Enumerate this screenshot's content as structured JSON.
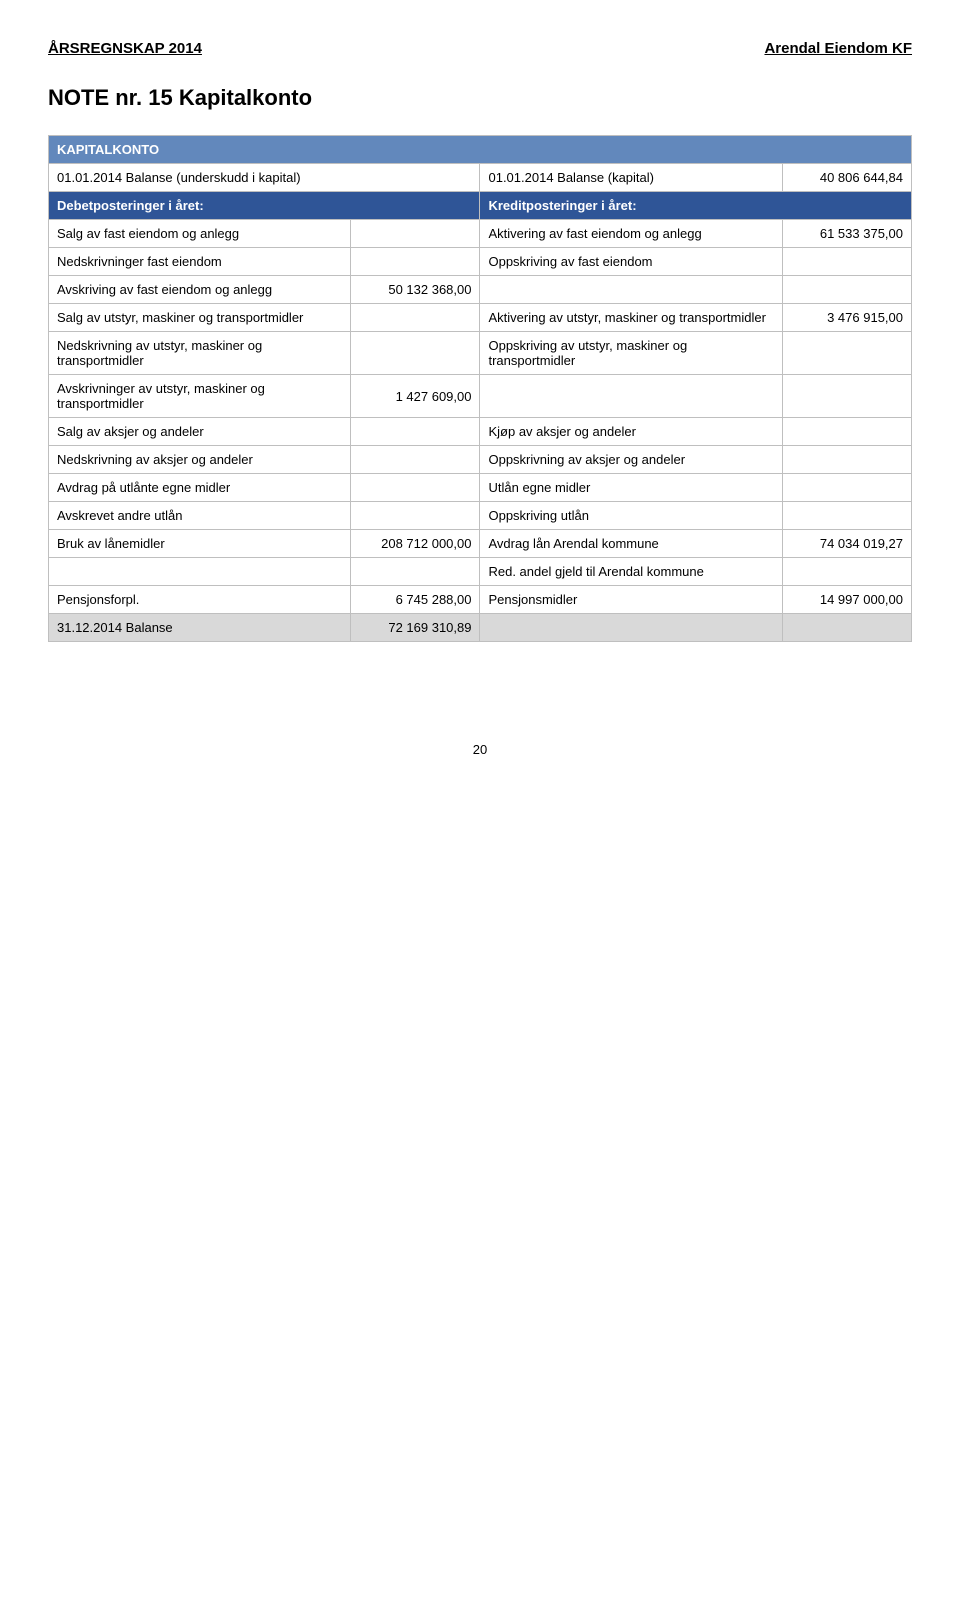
{
  "header": {
    "left": "ÅRSREGNSKAP 2014",
    "right": "Arendal Eiendom KF"
  },
  "title": "NOTE nr. 15  Kapitalkonto",
  "colors": {
    "sectionHeader": "#6288bc",
    "subHeader": "#2f5597",
    "shade": "#d9d9d9",
    "border": "#bfbfbf",
    "background": "#ffffff"
  },
  "sectionHeader": "KAPITALKONTO",
  "balanceOpen": {
    "left": "01.01.2014 Balanse (underskudd i kapital)",
    "right": "01.01.2014 Balanse (kapital)",
    "rightVal": "40 806 644,84"
  },
  "subHeaders": {
    "left": "Debetposteringer i året:",
    "right": "Kreditposteringer i året:"
  },
  "rows": [
    {
      "a": "Salg av fast eiendom og anlegg",
      "b": "",
      "c": "Aktivering av fast eiendom og anlegg",
      "d": "61 533 375,00"
    },
    {
      "a": "Nedskrivninger fast eiendom",
      "b": "",
      "c": "Oppskriving av fast eiendom",
      "d": ""
    },
    {
      "a": "Avskriving av fast eiendom og anlegg",
      "b": "50 132 368,00",
      "c": "",
      "d": ""
    },
    {
      "a": "Salg av utstyr, maskiner og transportmidler",
      "b": "",
      "c": "Aktivering av utstyr, maskiner og transportmidler",
      "d": "3 476 915,00"
    },
    {
      "a": "Nedskrivning av utstyr, maskiner og transportmidler",
      "b": "",
      "c": "Oppskriving av utstyr, maskiner og transportmidler",
      "d": ""
    },
    {
      "a": "Avskrivninger av utstyr, maskiner og transportmidler",
      "b": "1 427 609,00",
      "c": "",
      "d": ""
    },
    {
      "a": "Salg av aksjer og andeler",
      "b": "",
      "c": "Kjøp av aksjer og andeler",
      "d": ""
    },
    {
      "a": "Nedskrivning av aksjer og andeler",
      "b": "",
      "c": "Oppskrivning av aksjer og andeler",
      "d": ""
    },
    {
      "a": "Avdrag på utlånte egne midler",
      "b": "",
      "c": "Utlån egne midler",
      "d": ""
    },
    {
      "a": "Avskrevet andre utlån",
      "b": "",
      "c": "Oppskriving utlån",
      "d": ""
    },
    {
      "a": "Bruk av lånemidler",
      "b": "208 712 000,00",
      "c": "Avdrag lån Arendal kommune",
      "d": "74 034 019,27"
    },
    {
      "a": "",
      "b": "",
      "c": "Red. andel gjeld til Arendal kommune",
      "d": ""
    },
    {
      "a": "Pensjonsforpl.",
      "b": "6 745 288,00",
      "c": " Pensjonsmidler",
      "d": "14 997 000,00"
    }
  ],
  "balanceClose": {
    "a": "31.12.2014 Balanse",
    "b": "72 169 310,89",
    "c": "",
    "d": ""
  },
  "pageNumber": "20"
}
